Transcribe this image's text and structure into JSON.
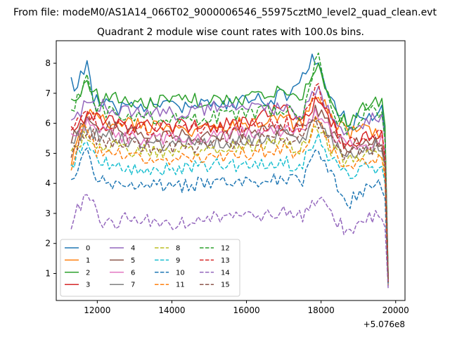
{
  "chart_data": {
    "type": "line",
    "suptitle": "From file: modeM0/AS1A14_066T02_9000006546_55975cztM0_level2_quad_clean.evt",
    "title": "Quadrant 2 module wise count rates with 100.0s bins.",
    "xlabel": "",
    "ylabel": "",
    "x_offset_label": "+5.076e8",
    "xlim": [
      10900,
      20250
    ],
    "ylim": [
      0.1,
      8.75
    ],
    "x_ticks": [
      12000,
      14000,
      16000,
      18000,
      20000
    ],
    "x_tick_labels": [
      "12000",
      "14000",
      "16000",
      "18000",
      "20000"
    ],
    "y_ticks": [
      1,
      2,
      3,
      4,
      5,
      6,
      7,
      8
    ],
    "y_tick_labels": [
      "1",
      "2",
      "3",
      "4",
      "5",
      "6",
      "7",
      "8"
    ],
    "grid": false,
    "legend_position": "lower-left",
    "legend_columns": 4,
    "series": [
      {
        "name": "0",
        "color": "#1f77b4",
        "dash": "solid",
        "anchors": [
          [
            11300,
            7.3
          ],
          [
            11500,
            7.3
          ],
          [
            11700,
            8.1
          ],
          [
            11900,
            6.8
          ],
          [
            12500,
            6.5
          ],
          [
            13500,
            6.6
          ],
          [
            14500,
            6.6
          ],
          [
            15500,
            6.7
          ],
          [
            16500,
            6.8
          ],
          [
            17300,
            7.0
          ],
          [
            17800,
            8.2
          ],
          [
            18000,
            7.7
          ],
          [
            18300,
            6.6
          ],
          [
            18600,
            6.3
          ],
          [
            18800,
            6.0
          ],
          [
            19200,
            6.3
          ],
          [
            19700,
            6.4
          ],
          [
            19800,
            0.9
          ]
        ]
      },
      {
        "name": "1",
        "color": "#ff7f0e",
        "dash": "solid",
        "anchors": [
          [
            11300,
            4.8
          ],
          [
            11700,
            6.4
          ],
          [
            12000,
            6.1
          ],
          [
            13000,
            6.0
          ],
          [
            14000,
            5.7
          ],
          [
            15000,
            5.9
          ],
          [
            16000,
            6.0
          ],
          [
            17000,
            6.1
          ],
          [
            17500,
            6.0
          ],
          [
            17900,
            7.0
          ],
          [
            18300,
            6.1
          ],
          [
            18700,
            5.7
          ],
          [
            19200,
            5.8
          ],
          [
            19700,
            5.5
          ],
          [
            19800,
            0.7
          ]
        ]
      },
      {
        "name": "2",
        "color": "#2ca02c",
        "dash": "solid",
        "anchors": [
          [
            11300,
            6.6
          ],
          [
            11700,
            7.3
          ],
          [
            12000,
            6.9
          ],
          [
            13000,
            6.7
          ],
          [
            14000,
            6.7
          ],
          [
            15000,
            6.8
          ],
          [
            16000,
            6.8
          ],
          [
            17000,
            7.1
          ],
          [
            17500,
            6.9
          ],
          [
            17900,
            8.0
          ],
          [
            18300,
            6.5
          ],
          [
            18700,
            6.0
          ],
          [
            19200,
            6.6
          ],
          [
            19700,
            6.8
          ],
          [
            19800,
            0.9
          ]
        ]
      },
      {
        "name": "3",
        "color": "#d62728",
        "dash": "solid",
        "anchors": [
          [
            11300,
            5.8
          ],
          [
            11700,
            6.2
          ],
          [
            12000,
            6.2
          ],
          [
            13000,
            5.9
          ],
          [
            14000,
            5.9
          ],
          [
            15000,
            5.9
          ],
          [
            16000,
            6.0
          ],
          [
            17000,
            6.6
          ],
          [
            17500,
            6.0
          ],
          [
            17900,
            6.8
          ],
          [
            18300,
            6.0
          ],
          [
            18700,
            5.2
          ],
          [
            19200,
            5.7
          ],
          [
            19700,
            5.5
          ],
          [
            19800,
            0.8
          ]
        ]
      },
      {
        "name": "4",
        "color": "#9467bd",
        "dash": "solid",
        "anchors": [
          [
            11300,
            6.0
          ],
          [
            11700,
            6.7
          ],
          [
            12000,
            6.6
          ],
          [
            13000,
            6.4
          ],
          [
            14000,
            6.3
          ],
          [
            15000,
            6.5
          ],
          [
            16000,
            6.5
          ],
          [
            17000,
            6.5
          ],
          [
            17500,
            6.3
          ],
          [
            17900,
            7.2
          ],
          [
            18300,
            6.2
          ],
          [
            18700,
            5.7
          ],
          [
            19200,
            6.0
          ],
          [
            19700,
            6.3
          ],
          [
            19800,
            0.8
          ]
        ]
      },
      {
        "name": "5",
        "color": "#8c564b",
        "dash": "solid",
        "anchors": [
          [
            11300,
            5.4
          ],
          [
            11700,
            6.1
          ],
          [
            12000,
            5.9
          ],
          [
            13000,
            5.7
          ],
          [
            14000,
            5.6
          ],
          [
            15000,
            5.6
          ],
          [
            16000,
            5.7
          ],
          [
            17000,
            5.9
          ],
          [
            17500,
            5.7
          ],
          [
            17900,
            6.5
          ],
          [
            18300,
            5.8
          ],
          [
            18700,
            5.2
          ],
          [
            19200,
            5.4
          ],
          [
            19700,
            5.3
          ],
          [
            19800,
            0.7
          ]
        ]
      },
      {
        "name": "6",
        "color": "#e377c2",
        "dash": "solid",
        "anchors": [
          [
            11300,
            5.5
          ],
          [
            11700,
            6.0
          ],
          [
            12000,
            5.7
          ],
          [
            13000,
            5.5
          ],
          [
            14000,
            5.5
          ],
          [
            15000,
            5.5
          ],
          [
            16000,
            5.7
          ],
          [
            17000,
            5.8
          ],
          [
            17500,
            5.6
          ],
          [
            17900,
            6.4
          ],
          [
            18300,
            5.6
          ],
          [
            18700,
            5.3
          ],
          [
            19200,
            5.2
          ],
          [
            19700,
            5.6
          ],
          [
            19800,
            0.7
          ]
        ]
      },
      {
        "name": "7",
        "color": "#7f7f7f",
        "dash": "solid",
        "anchors": [
          [
            11300,
            5.2
          ],
          [
            11700,
            5.9
          ],
          [
            12000,
            5.6
          ],
          [
            13000,
            5.4
          ],
          [
            14000,
            5.3
          ],
          [
            15000,
            5.4
          ],
          [
            16000,
            5.4
          ],
          [
            17000,
            5.6
          ],
          [
            17500,
            5.4
          ],
          [
            17900,
            6.2
          ],
          [
            18300,
            5.4
          ],
          [
            18700,
            5.0
          ],
          [
            19200,
            5.2
          ],
          [
            19700,
            5.3
          ],
          [
            19800,
            0.7
          ]
        ]
      },
      {
        "name": "8",
        "color": "#bcbd22",
        "dash": "dashed",
        "anchors": [
          [
            11300,
            4.9
          ],
          [
            11700,
            5.6
          ],
          [
            12000,
            5.3
          ],
          [
            13000,
            5.1
          ],
          [
            14000,
            5.0
          ],
          [
            15000,
            5.1
          ],
          [
            16000,
            5.2
          ],
          [
            17000,
            5.3
          ],
          [
            17500,
            5.2
          ],
          [
            17900,
            5.9
          ],
          [
            18300,
            5.1
          ],
          [
            18700,
            4.7
          ],
          [
            19200,
            4.9
          ],
          [
            19700,
            5.0
          ],
          [
            19800,
            0.6
          ]
        ]
      },
      {
        "name": "9",
        "color": "#17becf",
        "dash": "dashed",
        "anchors": [
          [
            11300,
            4.5
          ],
          [
            11700,
            5.6
          ],
          [
            12000,
            4.7
          ],
          [
            13000,
            4.5
          ],
          [
            14000,
            4.5
          ],
          [
            15000,
            4.6
          ],
          [
            16000,
            4.6
          ],
          [
            17000,
            4.7
          ],
          [
            17500,
            4.6
          ],
          [
            17900,
            5.6
          ],
          [
            18300,
            4.7
          ],
          [
            18700,
            4.3
          ],
          [
            19200,
            4.5
          ],
          [
            19700,
            4.6
          ],
          [
            19800,
            0.6
          ]
        ]
      },
      {
        "name": "10",
        "color": "#1f77b4",
        "dash": "dashed",
        "anchors": [
          [
            11300,
            3.9
          ],
          [
            11700,
            5.2
          ],
          [
            12000,
            4.1
          ],
          [
            13000,
            4.0
          ],
          [
            14000,
            3.9
          ],
          [
            15000,
            4.0
          ],
          [
            16000,
            4.0
          ],
          [
            17000,
            4.2
          ],
          [
            17500,
            4.1
          ],
          [
            17900,
            5.0
          ],
          [
            18300,
            4.2
          ],
          [
            18700,
            3.3
          ],
          [
            19200,
            3.9
          ],
          [
            19700,
            4.0
          ],
          [
            19800,
            0.6
          ]
        ]
      },
      {
        "name": "11",
        "color": "#ff7f0e",
        "dash": "dashed",
        "anchors": [
          [
            11300,
            4.5
          ],
          [
            11700,
            6.0
          ],
          [
            12000,
            5.0
          ],
          [
            13000,
            4.9
          ],
          [
            14000,
            4.8
          ],
          [
            15000,
            4.9
          ],
          [
            16000,
            5.0
          ],
          [
            17000,
            5.1
          ],
          [
            17500,
            5.0
          ],
          [
            17900,
            6.3
          ],
          [
            18300,
            5.1
          ],
          [
            18700,
            4.5
          ],
          [
            19200,
            4.8
          ],
          [
            19700,
            4.8
          ],
          [
            19800,
            0.6
          ]
        ]
      },
      {
        "name": "12",
        "color": "#2ca02c",
        "dash": "dashed",
        "anchors": [
          [
            11300,
            6.2
          ],
          [
            11700,
            7.6
          ],
          [
            12000,
            6.5
          ],
          [
            13000,
            6.2
          ],
          [
            14000,
            6.1
          ],
          [
            15000,
            6.2
          ],
          [
            16000,
            6.3
          ],
          [
            17000,
            6.5
          ],
          [
            17500,
            6.3
          ],
          [
            17900,
            8.3
          ],
          [
            18300,
            6.4
          ],
          [
            18700,
            5.7
          ],
          [
            19200,
            6.5
          ],
          [
            19700,
            6.2
          ],
          [
            19800,
            0.8
          ]
        ]
      },
      {
        "name": "13",
        "color": "#d62728",
        "dash": "dashed",
        "anchors": [
          [
            11300,
            5.6
          ],
          [
            11700,
            6.4
          ],
          [
            12000,
            6.0
          ],
          [
            13000,
            5.8
          ],
          [
            14000,
            5.8
          ],
          [
            15000,
            5.8
          ],
          [
            16000,
            5.9
          ],
          [
            17000,
            6.0
          ],
          [
            17500,
            5.9
          ],
          [
            17900,
            7.4
          ],
          [
            18300,
            5.9
          ],
          [
            18700,
            5.3
          ],
          [
            19200,
            5.6
          ],
          [
            19700,
            5.6
          ],
          [
            19800,
            0.7
          ]
        ]
      },
      {
        "name": "14",
        "color": "#9467bd",
        "dash": "dashed",
        "anchors": [
          [
            11300,
            2.6
          ],
          [
            11500,
            3.2
          ],
          [
            11700,
            3.7
          ],
          [
            12000,
            3.1
          ],
          [
            12200,
            2.6
          ],
          [
            13000,
            2.9
          ],
          [
            14000,
            2.6
          ],
          [
            15000,
            2.8
          ],
          [
            16000,
            2.9
          ],
          [
            17000,
            3.0
          ],
          [
            17500,
            2.9
          ],
          [
            17900,
            3.5
          ],
          [
            18300,
            2.9
          ],
          [
            18700,
            2.4
          ],
          [
            19200,
            2.8
          ],
          [
            19700,
            2.9
          ],
          [
            19800,
            0.5
          ]
        ]
      },
      {
        "name": "15",
        "color": "#8c564b",
        "dash": "dashed",
        "anchors": [
          [
            11300,
            5.0
          ],
          [
            11700,
            5.8
          ],
          [
            12000,
            5.5
          ],
          [
            13000,
            5.3
          ],
          [
            14000,
            5.2
          ],
          [
            15000,
            5.3
          ],
          [
            16000,
            5.4
          ],
          [
            17000,
            5.6
          ],
          [
            17500,
            5.4
          ],
          [
            17900,
            6.1
          ],
          [
            18300,
            5.3
          ],
          [
            18700,
            4.9
          ],
          [
            19200,
            5.1
          ],
          [
            19700,
            5.2
          ],
          [
            19800,
            0.7
          ]
        ]
      }
    ]
  }
}
